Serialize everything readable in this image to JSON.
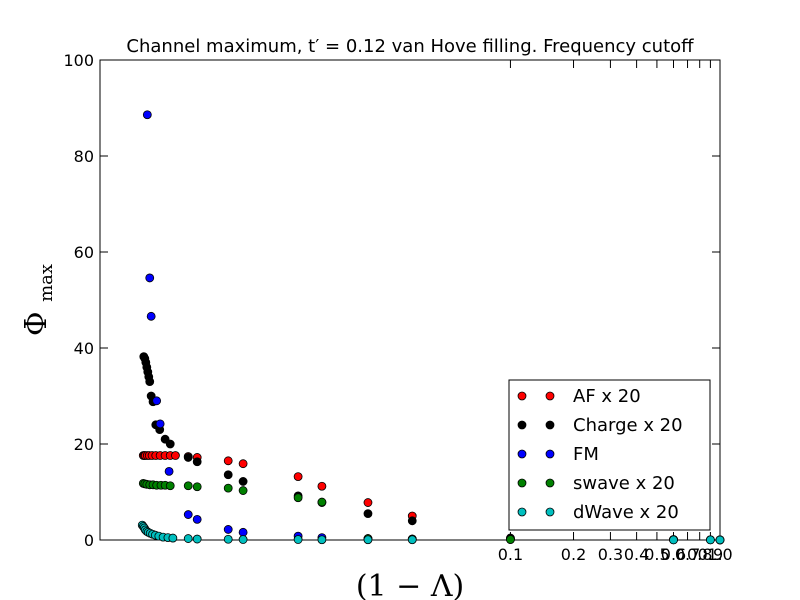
{
  "chart_data": {
    "type": "scatter",
    "title": "Channel maximum, t′ = 0.12 van Hove filling. Frequency cutoff",
    "xlabel": "(1 − Λ)",
    "ylabel_main": "Φ",
    "ylabel_sub": "max",
    "xscale": "log",
    "xlim": [
      0.0011,
      1.0
    ],
    "ylim": [
      0,
      100
    ],
    "x_ticks": [
      {
        "value": 0.1,
        "label": "0.1"
      },
      {
        "value": 0.2,
        "label": "0.2"
      },
      {
        "value": 0.3,
        "label": "0.3"
      },
      {
        "value": 0.4,
        "label": "0.4"
      },
      {
        "value": 0.5,
        "label": "0.5"
      },
      {
        "value": 0.6,
        "label": "0.6"
      },
      {
        "value": 0.7,
        "label": "0.7"
      },
      {
        "value": 0.8,
        "label": "0.8"
      },
      {
        "value": 0.9,
        "label": "0.9"
      },
      {
        "value": 1.0,
        "label": "1.0"
      }
    ],
    "y_ticks": [
      {
        "value": 0,
        "label": "0"
      },
      {
        "value": 20,
        "label": "20"
      },
      {
        "value": 40,
        "label": "40"
      },
      {
        "value": 60,
        "label": "60"
      },
      {
        "value": 80,
        "label": "80"
      },
      {
        "value": 100,
        "label": "100"
      }
    ],
    "grid": false,
    "legend_position": "bottom-right",
    "series": [
      {
        "name": "AF x 20",
        "color": "#ff0000",
        "points": [
          [
            0.00177,
            17.6
          ],
          [
            0.00179,
            17.6
          ],
          [
            0.00181,
            17.6
          ],
          [
            0.00185,
            17.6
          ],
          [
            0.00189,
            17.6
          ],
          [
            0.00195,
            17.6
          ],
          [
            0.00203,
            17.6
          ],
          [
            0.00213,
            17.6
          ],
          [
            0.00225,
            17.6
          ],
          [
            0.00238,
            17.6
          ],
          [
            0.00252,
            17.6
          ],
          [
            0.0029,
            17.4
          ],
          [
            0.0032,
            17.2
          ],
          [
            0.0045,
            16.5
          ],
          [
            0.0053,
            15.9
          ],
          [
            0.0097,
            13.2
          ],
          [
            0.0126,
            11.2
          ],
          [
            0.0209,
            7.8
          ],
          [
            0.034,
            5.0
          ],
          [
            0.1,
            0.4
          ],
          [
            0.6,
            0.1
          ],
          [
            0.9,
            0.05
          ],
          [
            1.0,
            0.02
          ]
        ]
      },
      {
        "name": "Charge x 20",
        "color": "#000000",
        "points": [
          [
            0.00178,
            38.2
          ],
          [
            0.0018,
            37.8
          ],
          [
            0.00182,
            37.0
          ],
          [
            0.00184,
            36.0
          ],
          [
            0.00186,
            35.0
          ],
          [
            0.00188,
            34.0
          ],
          [
            0.0019,
            33.0
          ],
          [
            0.00193,
            30.0
          ],
          [
            0.00197,
            28.8
          ],
          [
            0.00203,
            24.0
          ],
          [
            0.00212,
            23.0
          ],
          [
            0.00225,
            21.0
          ],
          [
            0.00238,
            20.0
          ],
          [
            0.0029,
            17.2
          ],
          [
            0.0032,
            16.3
          ],
          [
            0.0045,
            13.6
          ],
          [
            0.0053,
            12.2
          ],
          [
            0.0097,
            9.2
          ],
          [
            0.0126,
            7.8
          ],
          [
            0.0209,
            5.5
          ],
          [
            0.034,
            4.0
          ],
          [
            0.1,
            0.3
          ],
          [
            0.6,
            0.1
          ],
          [
            0.9,
            0.05
          ],
          [
            1.0,
            0.02
          ]
        ]
      },
      {
        "name": "FM",
        "color": "#0000ff",
        "points": [
          [
            0.00185,
            88.6
          ],
          [
            0.0019,
            54.6
          ],
          [
            0.00193,
            46.6
          ],
          [
            0.00205,
            29.0
          ],
          [
            0.00213,
            24.2
          ],
          [
            0.00235,
            14.3
          ],
          [
            0.0029,
            5.3
          ],
          [
            0.0032,
            4.3
          ],
          [
            0.0045,
            2.2
          ],
          [
            0.0053,
            1.6
          ],
          [
            0.0097,
            0.8
          ],
          [
            0.0126,
            0.5
          ],
          [
            0.0209,
            0.3
          ],
          [
            0.034,
            0.2
          ],
          [
            0.1,
            0.1
          ],
          [
            0.6,
            0.05
          ],
          [
            1.0,
            0.02
          ]
        ]
      },
      {
        "name": "swave x 20",
        "color": "#008000",
        "points": [
          [
            0.00177,
            11.8
          ],
          [
            0.0018,
            11.7
          ],
          [
            0.00184,
            11.6
          ],
          [
            0.0019,
            11.5
          ],
          [
            0.00197,
            11.5
          ],
          [
            0.00205,
            11.4
          ],
          [
            0.00215,
            11.4
          ],
          [
            0.00225,
            11.4
          ],
          [
            0.00238,
            11.3
          ],
          [
            0.0029,
            11.3
          ],
          [
            0.0032,
            11.1
          ],
          [
            0.0045,
            10.8
          ],
          [
            0.0053,
            10.3
          ],
          [
            0.0097,
            8.8
          ],
          [
            0.0126,
            7.9
          ],
          [
            0.0209,
            0.3
          ],
          [
            0.034,
            0.2
          ],
          [
            0.1,
            0.1
          ],
          [
            0.6,
            0.05
          ],
          [
            1.0,
            0.02
          ]
        ]
      },
      {
        "name": "dWave x 20",
        "color": "#00bfbf",
        "points": [
          [
            0.00175,
            3.1
          ],
          [
            0.00177,
            2.8
          ],
          [
            0.00179,
            2.5
          ],
          [
            0.00181,
            2.1
          ],
          [
            0.00184,
            1.8
          ],
          [
            0.00187,
            1.6
          ],
          [
            0.00191,
            1.4
          ],
          [
            0.00196,
            1.2
          ],
          [
            0.00202,
            1.0
          ],
          [
            0.0021,
            0.8
          ],
          [
            0.0022,
            0.6
          ],
          [
            0.00232,
            0.5
          ],
          [
            0.00245,
            0.4
          ],
          [
            0.0029,
            0.3
          ],
          [
            0.0032,
            0.2
          ],
          [
            0.0045,
            0.15
          ],
          [
            0.0053,
            0.1
          ],
          [
            0.0097,
            0.1
          ],
          [
            0.0126,
            0.05
          ],
          [
            0.0209,
            0.05
          ],
          [
            0.034,
            0.05
          ],
          [
            0.6,
            0.02
          ],
          [
            0.9,
            0.02
          ],
          [
            1.0,
            0.01
          ]
        ]
      }
    ]
  }
}
